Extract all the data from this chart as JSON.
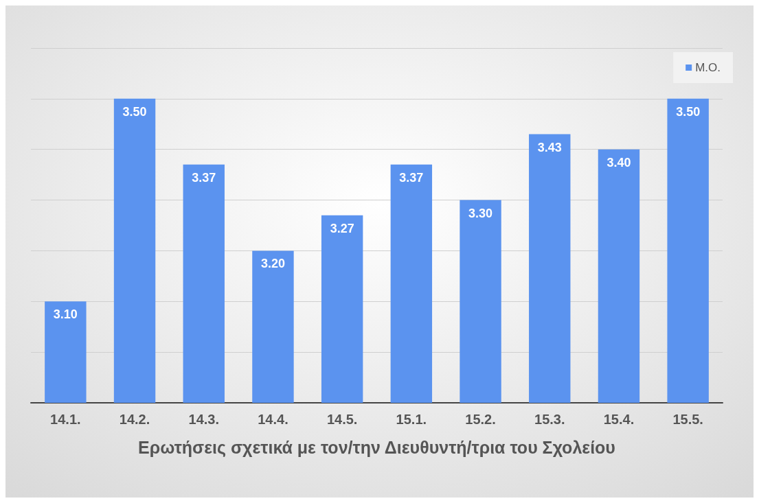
{
  "chart_data": {
    "type": "bar",
    "xlabel": "Ερωτήσεις σχετικά με τον/την Διευθυντή/τρια του Σχολείου",
    "categories": [
      "14.1.",
      "14.2.",
      "14.3.",
      "14.4.",
      "14.5.",
      "15.1.",
      "15.2.",
      "15.3.",
      "15.4.",
      "15.5."
    ],
    "series": [
      {
        "name": "Μ.Ο.",
        "color": "#5b93ef",
        "values": [
          3.1,
          3.5,
          3.37,
          3.2,
          3.27,
          3.37,
          3.3,
          3.43,
          3.4,
          3.5
        ],
        "value_labels": [
          "3.10",
          "3.50",
          "3.37",
          "3.20",
          "3.27",
          "3.37",
          "3.30",
          "3.43",
          "3.40",
          "3.50"
        ]
      }
    ],
    "ylim": [
      2.9,
      3.6
    ],
    "yticks": [
      {
        "value": 2.9,
        "label": null
      },
      {
        "value": 3.0,
        "label": null
      },
      {
        "value": 3.1,
        "label": null
      },
      {
        "value": 3.2,
        "label": null
      },
      {
        "value": 3.3,
        "label": null
      },
      {
        "value": 3.4,
        "label": null
      },
      {
        "value": 3.5,
        "label": null
      },
      {
        "value": 3.6,
        "label": null
      }
    ],
    "grid": "y",
    "legend": "top right",
    "tick_labels": "x"
  }
}
